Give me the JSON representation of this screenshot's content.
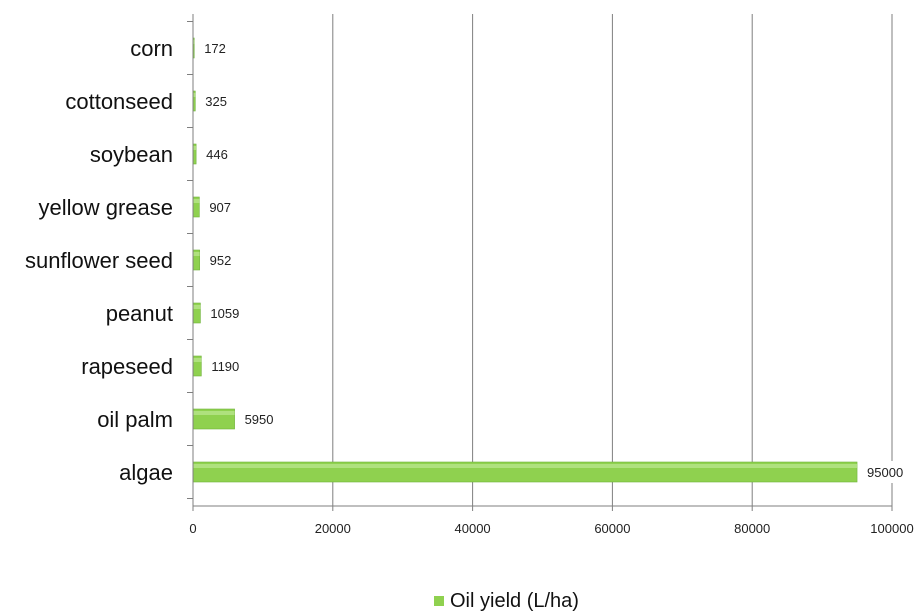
{
  "chart_data": {
    "type": "bar",
    "orientation": "horizontal",
    "categories": [
      "algae",
      "oil palm",
      "rapeseed",
      "peanut",
      "sunflower seed",
      "yellow grease",
      "soybean",
      "cottonseed",
      "corn"
    ],
    "series": [
      {
        "name": "Oil yield (L/ha)",
        "values": [
          95000,
          5950,
          1190,
          1059,
          952,
          907,
          446,
          325,
          172
        ]
      }
    ],
    "value_labels": [
      "95000",
      "5950",
      "1190",
      "1059",
      "952",
      "907",
      "446",
      "325",
      "172"
    ],
    "xlim": [
      0,
      100000
    ],
    "xticks": [
      0,
      20000,
      40000,
      60000,
      80000,
      100000
    ],
    "xtick_labels": [
      "0",
      "20000",
      "40000",
      "60000",
      "80000",
      "100000"
    ],
    "grid": "vertical",
    "legend_position": "bottom",
    "colors": {
      "bar": "#8fd14f",
      "bar_highlight": "#b7e58a",
      "grid": "#7f7f7f"
    }
  },
  "legend": {
    "label": "Oil yield (L/ha)"
  }
}
